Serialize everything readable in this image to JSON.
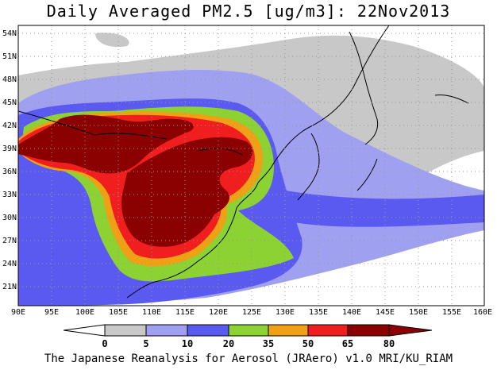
{
  "title": "Daily Averaged PM2.5 [ug/m3]: 22Nov2013",
  "footer": "The Japanese Reanalysis for Aerosol (JRAero) v1.0 MRI/KU_RIAM",
  "map": {
    "lat_labels": [
      "54N",
      "51N",
      "48N",
      "45N",
      "42N",
      "39N",
      "36N",
      "33N",
      "30N",
      "27N",
      "24N",
      "21N"
    ],
    "lon_labels": [
      "90E",
      "95E",
      "100E",
      "105E",
      "110E",
      "115E",
      "120E",
      "125E",
      "130E",
      "135E",
      "140E",
      "145E",
      "150E",
      "155E",
      "160E"
    ]
  },
  "colorbar": {
    "labels": [
      "0",
      "5",
      "10",
      "20",
      "35",
      "50",
      "65",
      "80"
    ],
    "colors": [
      "#ffffff",
      "#c8c8c8",
      "#a0a0f0",
      "#5a5af0",
      "#8cd232",
      "#f0a014",
      "#f01e1e",
      "#8b0000"
    ]
  }
}
